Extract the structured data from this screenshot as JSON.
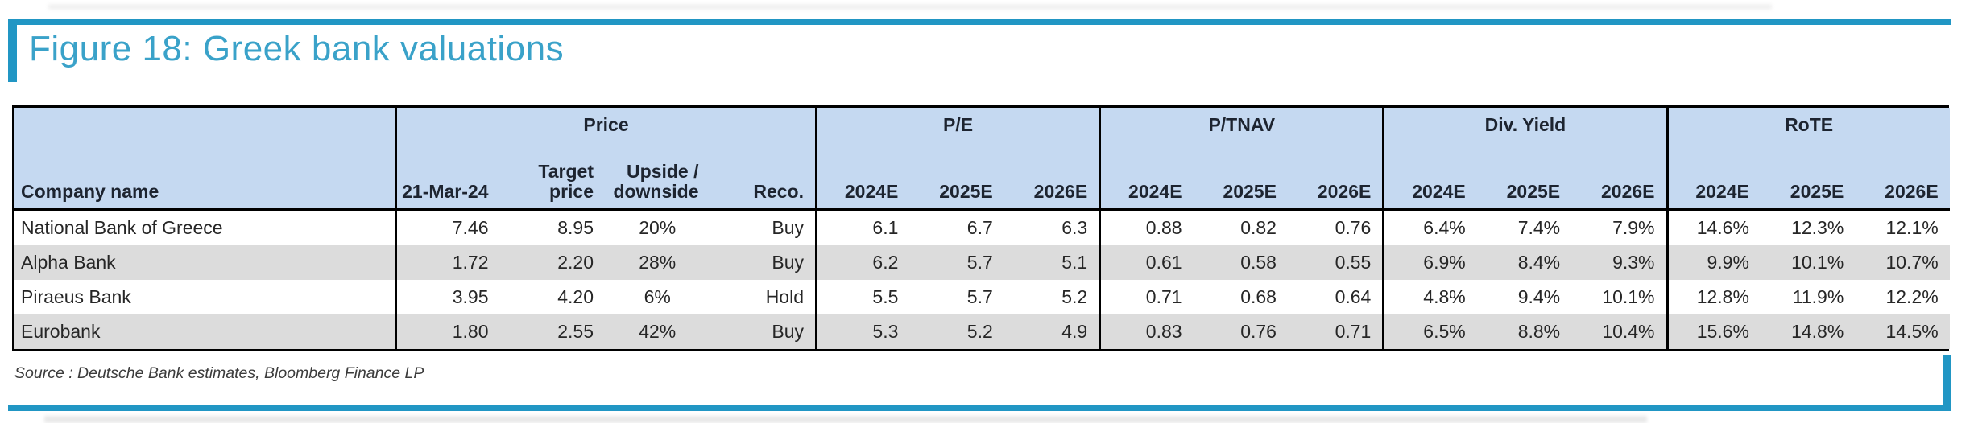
{
  "figure": {
    "title": "Figure 18: Greek bank valuations",
    "source_note": "Source : Deutsche Bank estimates, Bloomberg Finance LP",
    "accent_color": "#2196c4",
    "header_fill_color": "#c5d9f1",
    "alt_row_color": "#dcdcdc"
  },
  "table": {
    "company_column_header": "Company name",
    "groups": {
      "price": {
        "label": "Price",
        "subheaders": [
          "21-Mar-24",
          "Target\nprice",
          "Upside /\ndownside",
          "Reco."
        ]
      },
      "pe": {
        "label": "P/E",
        "subheaders": [
          "2024E",
          "2025E",
          "2026E"
        ]
      },
      "ptnav": {
        "label": "P/TNAV",
        "subheaders": [
          "2024E",
          "2025E",
          "2026E"
        ]
      },
      "div_yield": {
        "label": "Div. Yield",
        "subheaders": [
          "2024E",
          "2025E",
          "2026E"
        ]
      },
      "rote": {
        "label": "RoTE",
        "subheaders": [
          "2024E",
          "2025E",
          "2026E"
        ]
      }
    },
    "rows": [
      {
        "company": "National Bank of Greece",
        "price": "7.46",
        "target_price": "8.95",
        "upside": "20%",
        "reco": "Buy",
        "pe": [
          "6.1",
          "6.7",
          "6.3"
        ],
        "ptnav": [
          "0.88",
          "0.82",
          "0.76"
        ],
        "div_yield": [
          "6.4%",
          "7.4%",
          "7.9%"
        ],
        "rote": [
          "14.6%",
          "12.3%",
          "12.1%"
        ]
      },
      {
        "company": "Alpha Bank",
        "price": "1.72",
        "target_price": "2.20",
        "upside": "28%",
        "reco": "Buy",
        "pe": [
          "6.2",
          "5.7",
          "5.1"
        ],
        "ptnav": [
          "0.61",
          "0.58",
          "0.55"
        ],
        "div_yield": [
          "6.9%",
          "8.4%",
          "9.3%"
        ],
        "rote": [
          "9.9%",
          "10.1%",
          "10.7%"
        ]
      },
      {
        "company": "Piraeus Bank",
        "price": "3.95",
        "target_price": "4.20",
        "upside": "6%",
        "reco": "Hold",
        "pe": [
          "5.5",
          "5.7",
          "5.2"
        ],
        "ptnav": [
          "0.71",
          "0.68",
          "0.64"
        ],
        "div_yield": [
          "4.8%",
          "9.4%",
          "10.1%"
        ],
        "rote": [
          "12.8%",
          "11.9%",
          "12.2%"
        ]
      },
      {
        "company": "Eurobank",
        "price": "1.80",
        "target_price": "2.55",
        "upside": "42%",
        "reco": "Buy",
        "pe": [
          "5.3",
          "5.2",
          "4.9"
        ],
        "ptnav": [
          "0.83",
          "0.76",
          "0.71"
        ],
        "div_yield": [
          "6.5%",
          "8.8%",
          "10.4%"
        ],
        "rote": [
          "15.6%",
          "14.8%",
          "14.5%"
        ]
      }
    ]
  }
}
